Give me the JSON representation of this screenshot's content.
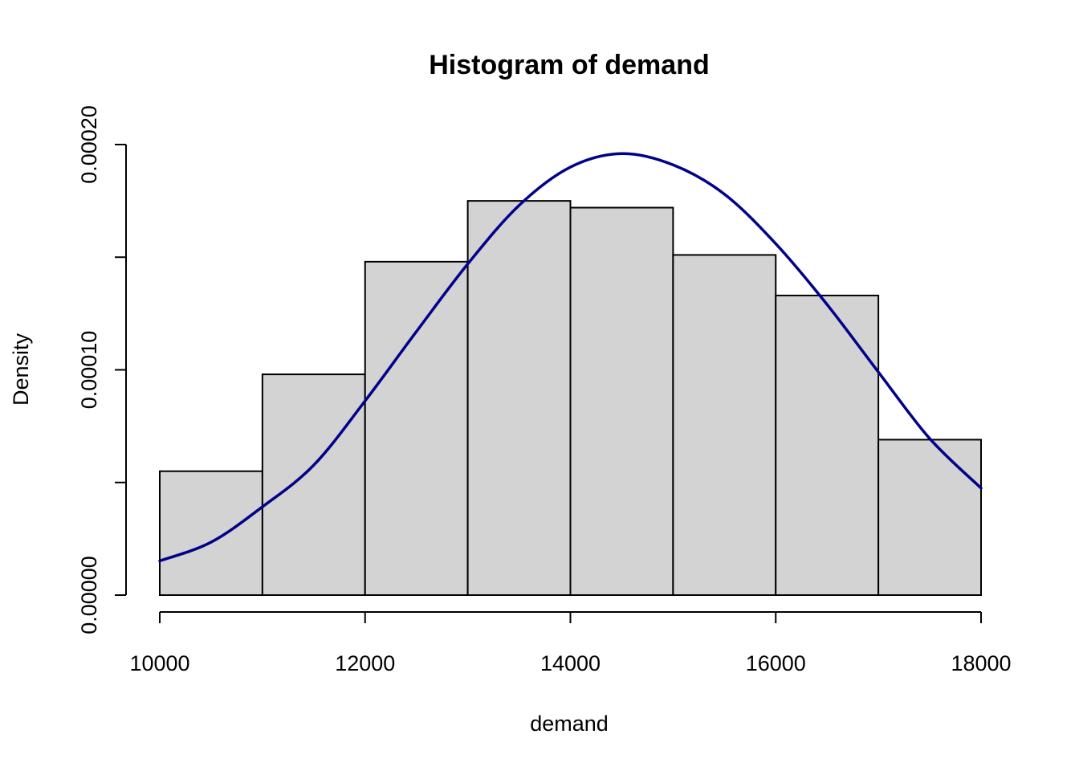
{
  "chart_data": {
    "type": "bar",
    "subtype": "histogram",
    "title": "Histogram of demand",
    "xlabel": "demand",
    "ylabel": "Density",
    "xlim": [
      10000,
      18000
    ],
    "ylim": [
      0,
      0.0002
    ],
    "x_ticks": [
      10000,
      12000,
      14000,
      16000,
      18000
    ],
    "x_tick_labels": [
      "10000",
      "12000",
      "14000",
      "16000",
      "18000"
    ],
    "y_ticks": [
      0,
      5e-05,
      0.0001,
      0.00015,
      0.0002
    ],
    "y_tick_labels": [
      "0.00000",
      "",
      "0.00010",
      "",
      "0.00020"
    ],
    "bins": [
      {
        "start": 10000,
        "end": 11000,
        "density": 5.5e-05
      },
      {
        "start": 11000,
        "end": 12000,
        "density": 9.8e-05
      },
      {
        "start": 12000,
        "end": 13000,
        "density": 0.000148
      },
      {
        "start": 13000,
        "end": 14000,
        "density": 0.000175
      },
      {
        "start": 14000,
        "end": 15000,
        "density": 0.000172
      },
      {
        "start": 15000,
        "end": 16000,
        "density": 0.000151
      },
      {
        "start": 16000,
        "end": 17000,
        "density": 0.000133
      },
      {
        "start": 17000,
        "end": 18000,
        "density": 6.9e-05
      }
    ],
    "overlay": {
      "type": "line",
      "points": [
        {
          "x": 10000,
          "y": 1.52e-05
        },
        {
          "x": 10500,
          "y": 2.35e-05
        },
        {
          "x": 11000,
          "y": 3.92e-05
        },
        {
          "x": 11500,
          "y": 5.77e-05
        },
        {
          "x": 12000,
          "y": 8.62e-05
        },
        {
          "x": 12500,
          "y": 0.000117
        },
        {
          "x": 13000,
          "y": 0.000147
        },
        {
          "x": 13500,
          "y": 0.000173
        },
        {
          "x": 14000,
          "y": 0.00019
        },
        {
          "x": 14500,
          "y": 0.000196
        },
        {
          "x": 15000,
          "y": 0.000191
        },
        {
          "x": 15500,
          "y": 0.000178
        },
        {
          "x": 16000,
          "y": 0.000156
        },
        {
          "x": 16500,
          "y": 0.000129
        },
        {
          "x": 17000,
          "y": 9.9e-05
        },
        {
          "x": 17500,
          "y": 6.95e-05
        },
        {
          "x": 18000,
          "y": 4.75e-05
        }
      ]
    },
    "colors": {
      "bar_fill": "#d3d3d3",
      "bar_stroke": "#000000",
      "curve": "#00008b"
    },
    "grid": false,
    "legend": "none"
  }
}
